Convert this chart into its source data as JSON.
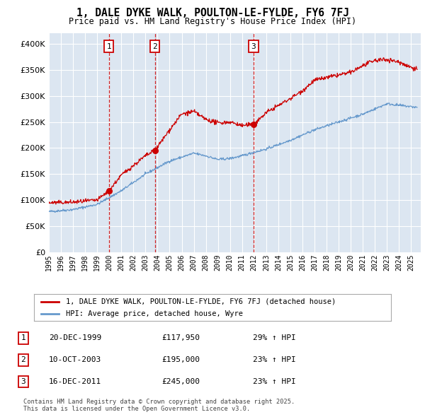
{
  "title": "1, DALE DYKE WALK, POULTON-LE-FYLDE, FY6 7FJ",
  "subtitle": "Price paid vs. HM Land Registry's House Price Index (HPI)",
  "sale_dates_num": [
    1999.97,
    2003.78,
    2011.96
  ],
  "sale_prices": [
    117950,
    195000,
    245000
  ],
  "sale_labels": [
    "1",
    "2",
    "3"
  ],
  "legend_property": "1, DALE DYKE WALK, POULTON-LE-FYLDE, FY6 7FJ (detached house)",
  "legend_hpi": "HPI: Average price, detached house, Wyre",
  "table_rows": [
    [
      "1",
      "20-DEC-1999",
      "£117,950",
      "29% ↑ HPI"
    ],
    [
      "2",
      "10-OCT-2003",
      "£195,000",
      "23% ↑ HPI"
    ],
    [
      "3",
      "16-DEC-2011",
      "£245,000",
      "23% ↑ HPI"
    ]
  ],
  "footer": "Contains HM Land Registry data © Crown copyright and database right 2025.\nThis data is licensed under the Open Government Licence v3.0.",
  "ylim": [
    0,
    420000
  ],
  "yticks": [
    0,
    50000,
    100000,
    150000,
    200000,
    250000,
    300000,
    350000,
    400000
  ],
  "plot_bg": "#dce6f1",
  "line_color_red": "#cc0000",
  "line_color_blue": "#6699cc",
  "grid_color": "#ffffff",
  "hpi_anchors_t": [
    1995,
    1997,
    1999,
    2001,
    2003,
    2005,
    2007,
    2008,
    2009,
    2010,
    2011,
    2012,
    2013,
    2015,
    2017,
    2019,
    2021,
    2022,
    2023,
    2024,
    2025.5
  ],
  "hpi_anchors_v": [
    78000,
    82000,
    92000,
    118000,
    150000,
    175000,
    190000,
    185000,
    178000,
    180000,
    185000,
    192000,
    198000,
    215000,
    235000,
    250000,
    265000,
    275000,
    285000,
    282000,
    278000
  ],
  "prop_anchors_t": [
    1995,
    1997,
    1999,
    1999.97,
    2001,
    2003,
    2003.78,
    2005,
    2006,
    2007,
    2008,
    2009,
    2010,
    2011,
    2011.96,
    2013,
    2015,
    2016,
    2017,
    2018,
    2019,
    2020,
    2021,
    2022,
    2023,
    2024,
    2025,
    2025.5
  ],
  "prop_anchors_v": [
    95000,
    96000,
    100000,
    117950,
    148000,
    185000,
    195000,
    235000,
    265000,
    270000,
    255000,
    248000,
    250000,
    243000,
    245000,
    268000,
    295000,
    310000,
    330000,
    335000,
    340000,
    345000,
    358000,
    368000,
    370000,
    365000,
    355000,
    352000
  ]
}
